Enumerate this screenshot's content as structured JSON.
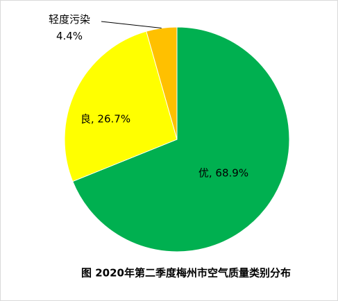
{
  "chart_data": {
    "type": "pie",
    "title": "图  2020年第二季度梅州市空气质量类别分布",
    "categories": [
      "优",
      "良",
      "轻度污染"
    ],
    "values": [
      68.9,
      26.7,
      4.4
    ],
    "value_labels": [
      "优, 68.9%",
      "良, 26.7%",
      "轻度污染\n4.4%"
    ],
    "colors": [
      "#00b050",
      "#ffff00",
      "#ffc000"
    ]
  }
}
